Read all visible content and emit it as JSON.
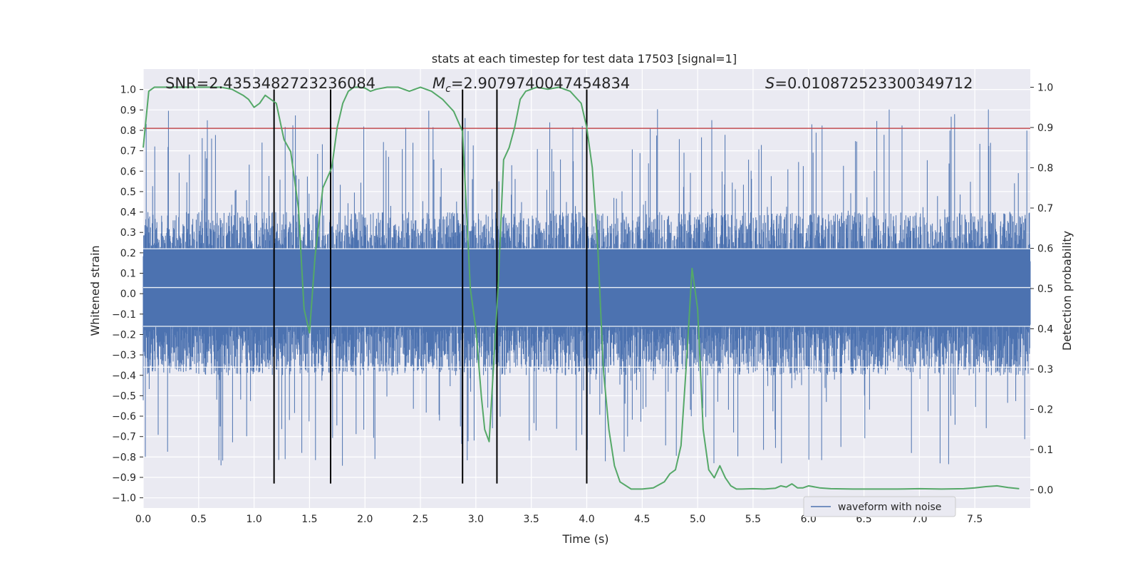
{
  "chart_data": {
    "type": "line",
    "title": "stats at each timestep for test data 17503 [signal=1]",
    "xlabel": "Time (s)",
    "ylabel": "Whitened strain",
    "y2label": "Detection probability",
    "xlim": [
      0.0,
      8.0
    ],
    "ylim": [
      -1.05,
      1.1
    ],
    "y2lim": [
      -0.045,
      1.045
    ],
    "xticks": [
      "0.0",
      "0.5",
      "1.0",
      "1.5",
      "2.0",
      "2.5",
      "3.0",
      "3.5",
      "4.0",
      "4.5",
      "5.0",
      "5.5",
      "6.0",
      "6.5",
      "7.0",
      "7.5"
    ],
    "yticks": [
      "−1.0",
      "−0.9",
      "−0.8",
      "−0.7",
      "−0.6",
      "−0.5",
      "−0.4",
      "−0.3",
      "−0.2",
      "−0.1",
      "0.0",
      "0.1",
      "0.2",
      "0.3",
      "0.4",
      "0.5",
      "0.6",
      "0.7",
      "0.8",
      "0.9",
      "1.0"
    ],
    "y2ticks": [
      "0.0",
      "0.1",
      "0.2",
      "0.3",
      "0.4",
      "0.5",
      "0.6",
      "0.7",
      "0.8",
      "0.9",
      "1.0"
    ],
    "grid": true,
    "legend_position": "lower-right",
    "annotations": {
      "snr": "SNR=2.4353482723236084",
      "mc_symbol": "M",
      "mc_sub": "c",
      "mc_value": "=2.9079740047454834",
      "s_symbol": "S",
      "s_value": "=0.010872523300349712"
    },
    "series": [
      {
        "name": "waveform with noise",
        "axis": "left",
        "color": "#4c72b0",
        "band": {
          "core": [
            -0.4,
            0.4
          ],
          "max": [
            -0.93,
            1.0
          ]
        }
      },
      {
        "axis": "left",
        "color": "#c44e52",
        "kind": "hline",
        "y": 0.81
      },
      {
        "axis": "right",
        "color": "#55a868",
        "x": [
          0.0,
          0.05,
          0.1,
          0.2,
          0.3,
          0.4,
          0.5,
          0.6,
          0.7,
          0.8,
          0.9,
          0.95,
          1.0,
          1.05,
          1.1,
          1.2,
          1.27,
          1.33,
          1.4,
          1.45,
          1.5,
          1.55,
          1.62,
          1.7,
          1.75,
          1.8,
          1.85,
          1.9,
          1.95,
          2.0,
          2.05,
          2.1,
          2.2,
          2.3,
          2.4,
          2.5,
          2.6,
          2.7,
          2.8,
          2.88,
          2.95,
          3.0,
          3.05,
          3.08,
          3.12,
          3.2,
          3.25,
          3.3,
          3.35,
          3.4,
          3.45,
          3.55,
          3.65,
          3.75,
          3.85,
          3.95,
          4.0,
          4.05,
          4.1,
          4.15,
          4.2,
          4.25,
          4.3,
          4.4,
          4.5,
          4.6,
          4.7,
          4.75,
          4.8,
          4.85,
          4.9,
          4.95,
          5.0,
          5.05,
          5.1,
          5.15,
          5.2,
          5.25,
          5.3,
          5.35,
          5.4,
          5.5,
          5.6,
          5.7,
          5.75,
          5.8,
          5.85,
          5.9,
          5.95,
          6.0,
          6.1,
          6.2,
          6.4,
          6.6,
          6.8,
          7.0,
          7.2,
          7.4,
          7.5,
          7.6,
          7.7,
          7.8,
          7.9
        ],
        "y": [
          0.85,
          0.99,
          1.0,
          1.0,
          1.0,
          1.0,
          1.0,
          1.0,
          1.0,
          0.995,
          0.98,
          0.97,
          0.95,
          0.96,
          0.98,
          0.96,
          0.87,
          0.84,
          0.7,
          0.45,
          0.39,
          0.58,
          0.75,
          0.8,
          0.9,
          0.96,
          0.99,
          1.0,
          1.0,
          0.998,
          0.99,
          0.995,
          1.0,
          1.0,
          0.99,
          1.0,
          0.99,
          0.97,
          0.94,
          0.89,
          0.5,
          0.4,
          0.23,
          0.15,
          0.12,
          0.5,
          0.82,
          0.85,
          0.9,
          0.97,
          0.99,
          1.0,
          0.995,
          1.0,
          0.99,
          0.96,
          0.9,
          0.8,
          0.6,
          0.3,
          0.15,
          0.06,
          0.02,
          0.002,
          0.002,
          0.005,
          0.02,
          0.04,
          0.05,
          0.11,
          0.32,
          0.55,
          0.45,
          0.15,
          0.05,
          0.03,
          0.06,
          0.03,
          0.01,
          0.002,
          0.002,
          0.003,
          0.002,
          0.004,
          0.01,
          0.007,
          0.015,
          0.005,
          0.005,
          0.01,
          0.005,
          0.003,
          0.002,
          0.002,
          0.002,
          0.003,
          0.002,
          0.003,
          0.005,
          0.008,
          0.01,
          0.006,
          0.003
        ]
      }
    ],
    "vlines": [
      1.18,
      1.69,
      2.88,
      3.19,
      4.0
    ],
    "vline_range": [
      -0.93,
      1.0
    ]
  }
}
